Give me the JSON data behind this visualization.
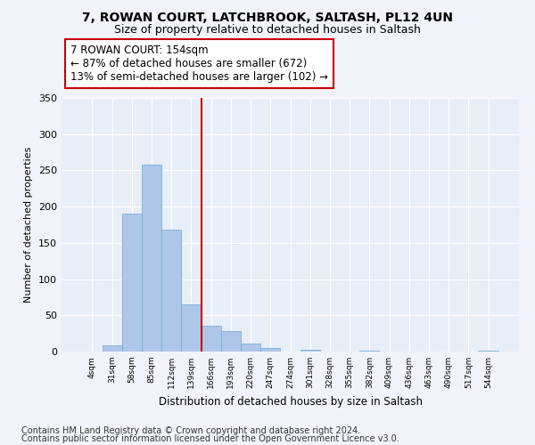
{
  "title1": "7, ROWAN COURT, LATCHBROOK, SALTASH, PL12 4UN",
  "title2": "Size of property relative to detached houses in Saltash",
  "xlabel": "Distribution of detached houses by size in Saltash",
  "ylabel": "Number of detached properties",
  "categories": [
    "4sqm",
    "31sqm",
    "58sqm",
    "85sqm",
    "112sqm",
    "139sqm",
    "166sqm",
    "193sqm",
    "220sqm",
    "247sqm",
    "274sqm",
    "301sqm",
    "328sqm",
    "355sqm",
    "382sqm",
    "409sqm",
    "436sqm",
    "463sqm",
    "490sqm",
    "517sqm",
    "544sqm"
  ],
  "values": [
    0,
    9,
    190,
    258,
    168,
    65,
    36,
    28,
    11,
    5,
    0,
    3,
    0,
    0,
    1,
    0,
    0,
    0,
    0,
    0,
    1
  ],
  "bar_color": "#aec6e8",
  "bar_edgecolor": "#7aaed4",
  "vline_x": 5.5,
  "vline_color": "#cc0000",
  "annotation_line1": "7 ROWAN COURT: 154sqm",
  "annotation_line2": "← 87% of detached houses are smaller (672)",
  "annotation_line3": "13% of semi-detached houses are larger (102) →",
  "annotation_box_color": "#ffffff",
  "annotation_box_edgecolor": "#cc0000",
  "annotation_fontsize": 8.5,
  "footer1": "Contains HM Land Registry data © Crown copyright and database right 2024.",
  "footer2": "Contains public sector information licensed under the Open Government Licence v3.0.",
  "bg_color": "#f0f4fa",
  "plot_bg_color": "#e8eef8",
  "ylim": [
    0,
    350
  ],
  "yticks": [
    0,
    50,
    100,
    150,
    200,
    250,
    300,
    350
  ],
  "title_fontsize": 10,
  "subtitle_fontsize": 9,
  "footer_fontsize": 7
}
